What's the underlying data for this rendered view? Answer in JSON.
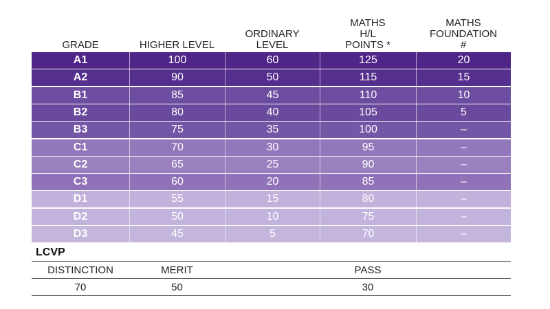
{
  "table": {
    "header": [
      "GRADE",
      "HIGHER LEVEL",
      "ORDINARY\nLEVEL",
      "MATHS\nH/L\nPOINTS *",
      "MATHS\nFOUNDATION\n#"
    ],
    "rows": [
      [
        "A1",
        100,
        60,
        125,
        20
      ],
      [
        "A2",
        90,
        50,
        115,
        15
      ],
      [
        "B1",
        85,
        45,
        110,
        10
      ],
      [
        "B2",
        80,
        40,
        105,
        5
      ],
      [
        "B3",
        75,
        35,
        100,
        "–"
      ],
      [
        "C1",
        70,
        30,
        95,
        "–"
      ],
      [
        "C2",
        65,
        25,
        90,
        "–"
      ],
      [
        "C3",
        60,
        20,
        85,
        "–"
      ],
      [
        "D1",
        55,
        15,
        80,
        "–"
      ],
      [
        "D2",
        50,
        10,
        75,
        "–"
      ],
      [
        "D3",
        45,
        5,
        70,
        "–"
      ]
    ]
  },
  "lcvp": {
    "title": "LCVP",
    "header": [
      "DISTINCTION",
      "MERIT",
      "PASS"
    ],
    "values": [
      70,
      50,
      30
    ]
  }
}
